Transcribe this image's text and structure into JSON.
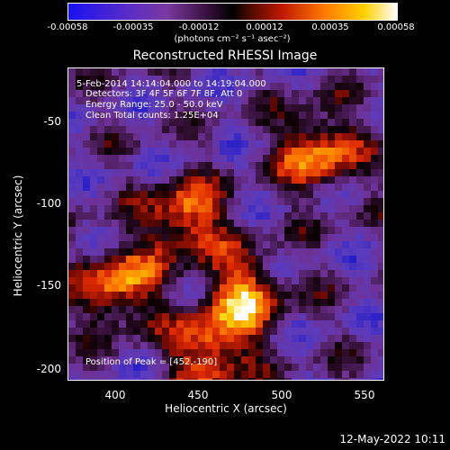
{
  "chart_data": {
    "type": "heatmap",
    "title": "Reconstructed RHESSI Image",
    "xlabel": "Heliocentric X (arcsec)",
    "ylabel": "Heliocentric Y (arcsec)",
    "xlim": [
      370,
      560
    ],
    "ylim": [
      -207,
      -20
    ],
    "x_ticks": [
      "400",
      "450",
      "500",
      "550"
    ],
    "y_ticks": [
      "-50",
      "-100",
      "-150",
      "-200"
    ],
    "colorbar": {
      "ticks": [
        "-0.00058",
        "-0.00035",
        "-0.00012",
        "0.00012",
        "0.00035",
        "0.00058"
      ],
      "range": [
        -0.00058,
        0.00058
      ],
      "unit_label": "(photons cm⁻² s⁻¹ asec⁻²)"
    },
    "annotations": [
      " 5-Feb-2014 14:14:04.000 to 14:19:04.000",
      "Detectors: 3F 4F 5F 6F 7F 8F, Att 0",
      "Energy Range: 25.0 - 50.0 keV",
      "Clean    Total counts: 1.25E+04"
    ],
    "peak_label": "Position of Peak = [452,-190]",
    "hot_regions": [
      {
        "x": 520,
        "y": -70
      },
      {
        "x": 475,
        "y": -155
      },
      {
        "x": 455,
        "y": -190
      },
      {
        "x": 400,
        "y": -150
      },
      {
        "x": 440,
        "y": -110
      }
    ]
  },
  "footer_date": "12-May-2022 10:11"
}
